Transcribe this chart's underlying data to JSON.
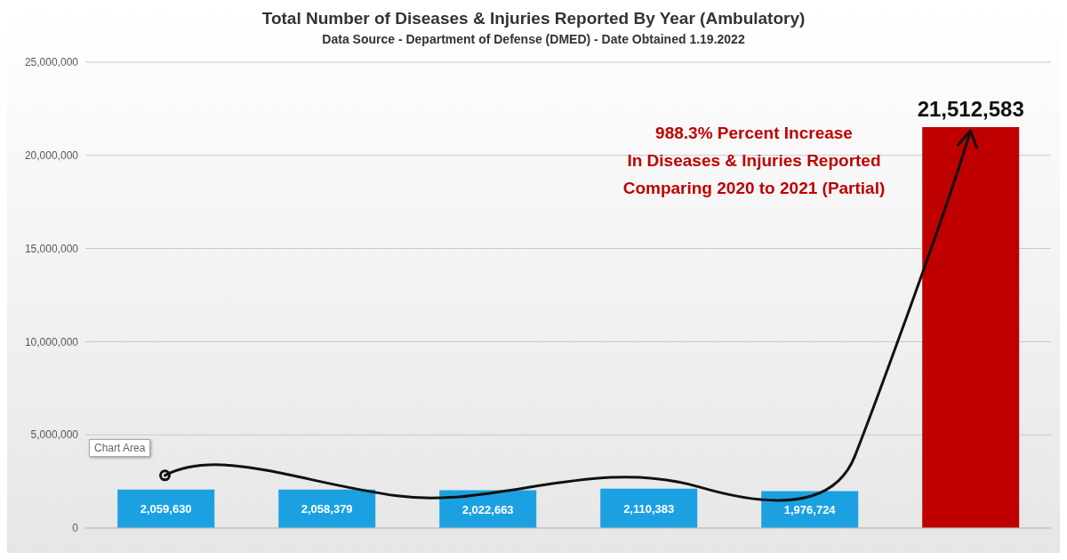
{
  "chart_data": {
    "type": "bar",
    "title": "Total Number of Diseases & Injuries Reported By Year (Ambulatory)",
    "subtitle": "Data Source - Department of Defense (DMED) - Date Obtained 1.19.2022",
    "categories": [
      null,
      null,
      null,
      null,
      null,
      null
    ],
    "values": [
      2059630,
      2058379,
      2022663,
      2110383,
      1976724,
      21512583
    ],
    "colors": [
      "#1ba1e2",
      "#1ba1e2",
      "#1ba1e2",
      "#1ba1e2",
      "#1ba1e2",
      "#c00000"
    ],
    "value_labels": [
      "2,059,630",
      "2,058,379",
      "2,022,663",
      "2,110,383",
      "1,976,724",
      "21,512,583"
    ],
    "ylim": [
      0,
      25000000
    ],
    "yticks": [
      0,
      {
        "value": 5000000,
        "label": "5,000,000"
      },
      {
        "value": 10000000,
        "label": "10,000,000"
      },
      {
        "value": 15000000,
        "label": "15,000,000"
      },
      {
        "value": 20000000,
        "label": "20,000,000"
      },
      {
        "value": 25000000,
        "label": "25,000,000"
      }
    ],
    "grid": "y",
    "annotations": [
      "988.3% Percent Increase\nIn Diseases & Injuries Reported\nComparing 2020 to 2021 (Partial)",
      "Chart Area"
    ]
  }
}
